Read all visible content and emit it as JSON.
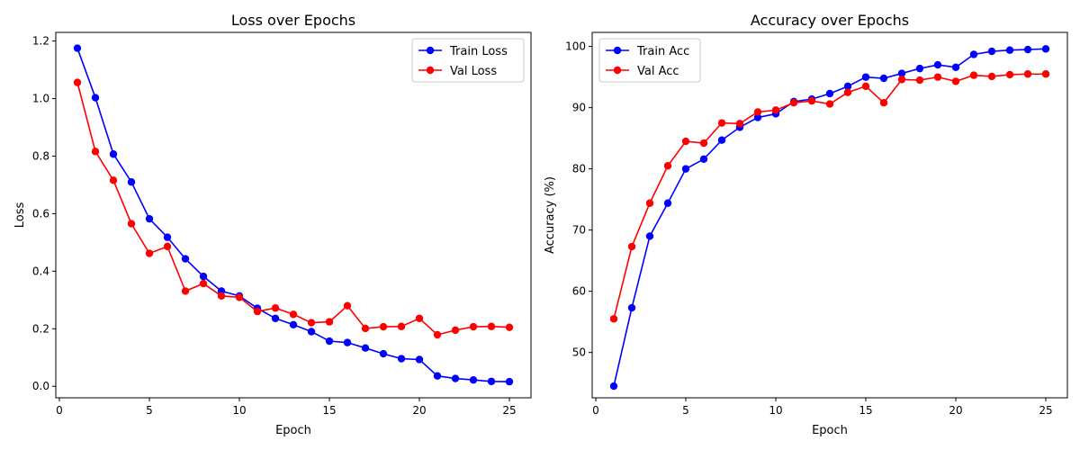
{
  "chart_data": [
    {
      "type": "line",
      "title": "Loss over Epochs",
      "xlabel": "Epoch",
      "ylabel": "Loss",
      "xlim": [
        -0.2,
        26.2
      ],
      "ylim": [
        -0.04,
        1.23
      ],
      "xticks": [
        0,
        5,
        10,
        15,
        20,
        25
      ],
      "yticks": [
        0.0,
        0.2,
        0.4,
        0.6,
        0.8,
        1.0,
        1.2
      ],
      "ytick_decimals": 1,
      "grid": false,
      "legend": "top-right",
      "x": [
        1,
        2,
        3,
        4,
        5,
        6,
        7,
        8,
        9,
        10,
        11,
        12,
        13,
        14,
        15,
        16,
        17,
        18,
        19,
        20,
        21,
        22,
        23,
        24,
        25
      ],
      "series": [
        {
          "name": "Train Loss",
          "color": "#0000ff",
          "values": [
            1.175,
            1.003,
            0.807,
            0.71,
            0.582,
            0.518,
            0.443,
            0.382,
            0.331,
            0.314,
            0.271,
            0.236,
            0.214,
            0.19,
            0.157,
            0.152,
            0.133,
            0.113,
            0.096,
            0.093,
            0.036,
            0.027,
            0.022,
            0.017,
            0.016
          ]
        },
        {
          "name": "Val Loss",
          "color": "#ff0000",
          "values": [
            1.056,
            0.816,
            0.716,
            0.565,
            0.462,
            0.486,
            0.331,
            0.357,
            0.314,
            0.309,
            0.26,
            0.272,
            0.25,
            0.221,
            0.224,
            0.28,
            0.201,
            0.207,
            0.208,
            0.236,
            0.179,
            0.195,
            0.207,
            0.208,
            0.205
          ]
        }
      ]
    },
    {
      "type": "line",
      "title": "Accuracy over Epochs",
      "xlabel": "Epoch",
      "ylabel": "Accuracy (%)",
      "xlim": [
        -0.2,
        26.2
      ],
      "ylim": [
        42.6,
        102.3
      ],
      "xticks": [
        0,
        5,
        10,
        15,
        20,
        25
      ],
      "yticks": [
        50,
        60,
        70,
        80,
        90,
        100
      ],
      "ytick_decimals": 0,
      "grid": false,
      "legend": "top-left",
      "x": [
        1,
        2,
        3,
        4,
        5,
        6,
        7,
        8,
        9,
        10,
        11,
        12,
        13,
        14,
        15,
        16,
        17,
        18,
        19,
        20,
        21,
        22,
        23,
        24,
        25
      ],
      "series": [
        {
          "name": "Train Acc",
          "color": "#0000ff",
          "values": [
            44.5,
            57.3,
            69.0,
            74.4,
            80.0,
            81.6,
            84.7,
            86.8,
            88.4,
            89.0,
            91.0,
            91.4,
            92.3,
            93.5,
            95.0,
            94.8,
            95.6,
            96.4,
            97.0,
            96.6,
            98.7,
            99.2,
            99.4,
            99.5,
            99.6
          ]
        },
        {
          "name": "Val Acc",
          "color": "#ff0000",
          "values": [
            55.5,
            67.3,
            74.4,
            80.5,
            84.5,
            84.2,
            87.5,
            87.4,
            89.3,
            89.6,
            90.8,
            91.1,
            90.6,
            92.5,
            93.5,
            90.8,
            94.6,
            94.5,
            95.0,
            94.3,
            95.3,
            95.1,
            95.4,
            95.5,
            95.5
          ]
        }
      ]
    }
  ]
}
